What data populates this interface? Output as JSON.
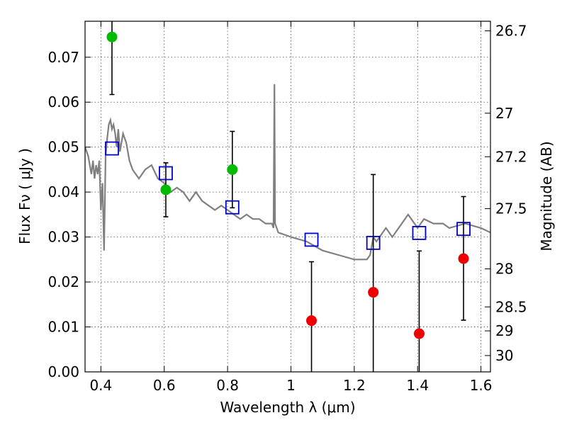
{
  "chart_data": {
    "type": "scatter",
    "xlabel": "Wavelength  λ (μm)",
    "ylabel": "Flux  Fν  ( μJy )",
    "ylabel_right": "Magnitude (AB)",
    "xlim": [
      0.35,
      1.63
    ],
    "ylim": [
      0.0,
      0.078
    ],
    "grid": true,
    "x_ticks": [
      0.4,
      0.6,
      0.8,
      1.0,
      1.2,
      1.4,
      1.6
    ],
    "x_tick_labels": [
      "0.4",
      "0.6",
      "0.8",
      "1",
      "1.2",
      "1.4",
      "1.6"
    ],
    "y_ticks": [
      0.0,
      0.01,
      0.02,
      0.03,
      0.04,
      0.05,
      0.06,
      0.07
    ],
    "y_tick_labels": [
      "0.00",
      "0.01",
      "0.02",
      "0.03",
      "0.04",
      "0.05",
      "0.06",
      "0.07"
    ],
    "mag_ticks": [
      {
        "label": "26.7",
        "mag": 26.7
      },
      {
        "label": "27",
        "mag": 27.0
      },
      {
        "label": "27.2",
        "mag": 27.2
      },
      {
        "label": "27.5",
        "mag": 27.5
      },
      {
        "label": "28",
        "mag": 28.0
      },
      {
        "label": "28.5",
        "mag": 28.5
      },
      {
        "label": "29",
        "mag": 29.0
      },
      {
        "label": "30",
        "mag": 30.0
      }
    ],
    "colors": {
      "model": "#808080",
      "model_points": "#0000cc",
      "detections": "#00bb00",
      "upper_limits": "#ee0000",
      "errorbar": "#000000"
    },
    "series": [
      {
        "role": "model_spectrum",
        "x": [
          0.35,
          0.36,
          0.37,
          0.375,
          0.38,
          0.385,
          0.39,
          0.395,
          0.4,
          0.405,
          0.41,
          0.415,
          0.42,
          0.425,
          0.43,
          0.435,
          0.44,
          0.445,
          0.45,
          0.455,
          0.46,
          0.47,
          0.48,
          0.49,
          0.5,
          0.52,
          0.54,
          0.56,
          0.58,
          0.6,
          0.62,
          0.64,
          0.66,
          0.68,
          0.7,
          0.72,
          0.74,
          0.76,
          0.78,
          0.8,
          0.82,
          0.84,
          0.86,
          0.88,
          0.9,
          0.92,
          0.94,
          0.945,
          0.948,
          0.95,
          0.955,
          0.96,
          1.0,
          1.05,
          1.1,
          1.15,
          1.2,
          1.24,
          1.25,
          1.26,
          1.27,
          1.3,
          1.32,
          1.35,
          1.37,
          1.38,
          1.4,
          1.42,
          1.45,
          1.48,
          1.5,
          1.55,
          1.6,
          1.63
        ],
        "y": [
          0.05,
          0.048,
          0.044,
          0.047,
          0.043,
          0.046,
          0.044,
          0.047,
          0.036,
          0.042,
          0.027,
          0.048,
          0.052,
          0.055,
          0.056,
          0.054,
          0.055,
          0.053,
          0.05,
          0.054,
          0.049,
          0.053,
          0.051,
          0.047,
          0.045,
          0.043,
          0.045,
          0.046,
          0.043,
          0.042,
          0.04,
          0.041,
          0.04,
          0.038,
          0.04,
          0.038,
          0.037,
          0.036,
          0.037,
          0.036,
          0.035,
          0.034,
          0.035,
          0.034,
          0.034,
          0.033,
          0.033,
          0.032,
          0.064,
          0.033,
          0.032,
          0.031,
          0.03,
          0.029,
          0.027,
          0.026,
          0.025,
          0.025,
          0.026,
          0.03,
          0.029,
          0.032,
          0.03,
          0.033,
          0.035,
          0.034,
          0.032,
          0.034,
          0.033,
          0.033,
          0.032,
          0.033,
          0.032,
          0.031
        ]
      },
      {
        "role": "model_bandpass",
        "x": [
          0.435,
          0.605,
          0.815,
          1.065,
          1.26,
          1.405,
          1.545
        ],
        "y": [
          0.0497,
          0.0442,
          0.0366,
          0.0294,
          0.0287,
          0.0309,
          0.0318
        ]
      },
      {
        "role": "observed_detection",
        "x": [
          0.435,
          0.605,
          0.815
        ],
        "y": [
          0.0745,
          0.0405,
          0.045
        ],
        "err_low": [
          0.0128,
          0.006,
          0.0085
        ],
        "err_high": [
          0.0085,
          0.006,
          0.0085
        ]
      },
      {
        "role": "observed_limit",
        "x": [
          1.065,
          1.26,
          1.405,
          1.545
        ],
        "y": [
          0.0114,
          0.0177,
          0.0085,
          0.0252
        ],
        "err_low": [
          0.0114,
          0.0177,
          0.0085,
          0.0137
        ],
        "err_high": [
          0.0131,
          0.0262,
          0.0184,
          0.0138
        ]
      }
    ]
  }
}
